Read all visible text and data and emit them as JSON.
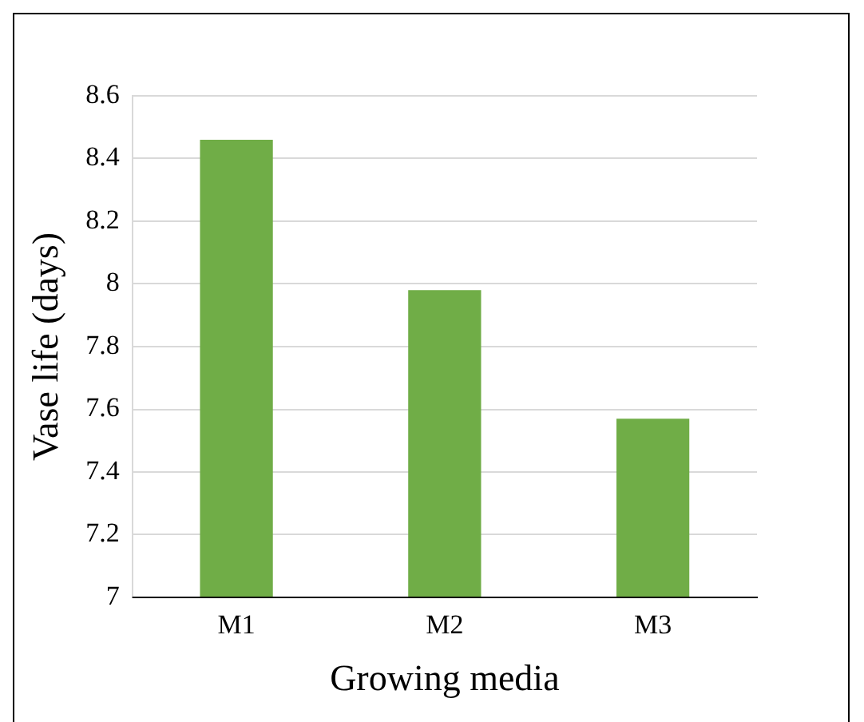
{
  "chart_data": {
    "type": "bar",
    "xlabel": "Growing media",
    "ylabel": "Vase life (days)",
    "categories": [
      "M1",
      "M2",
      "M3"
    ],
    "values": [
      8.46,
      7.98,
      7.57
    ],
    "color": "#70ad47",
    "ylim": [
      7,
      8.6
    ],
    "yticks": [
      7,
      7.2,
      7.4,
      7.6,
      7.8,
      8,
      8.2,
      8.4,
      8.6
    ],
    "grid": "y",
    "legend": false
  }
}
